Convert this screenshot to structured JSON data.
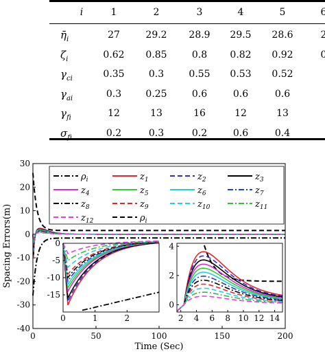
{
  "table": {
    "header": [
      "i",
      "1",
      "2",
      "3",
      "4",
      "5",
      "6"
    ],
    "rows": [
      {
        "symbol": "η̄",
        "sub": "i",
        "values": [
          "27",
          "29.2",
          "28.9",
          "29.5",
          "28.6",
          "2"
        ]
      },
      {
        "symbol": "ζ",
        "sub": "i",
        "values": [
          "0.62",
          "0.85",
          "0.8",
          "0.82",
          "0.92",
          "0"
        ]
      },
      {
        "symbol": "γ",
        "sub": "ci",
        "values": [
          "0.35",
          "0.3",
          "0.55",
          "0.53",
          "0.52",
          ""
        ]
      },
      {
        "symbol": "γ",
        "sub": "ai",
        "values": [
          "0.3",
          "0.25",
          "0.6",
          "0.6",
          "0.6",
          ""
        ]
      },
      {
        "symbol": "γ",
        "sub": "fi",
        "values": [
          "12",
          "13",
          "16",
          "12",
          "13",
          ""
        ]
      },
      {
        "symbol": "σ",
        "sub": "fi",
        "values": [
          "0.2",
          "0.3",
          "0.2",
          "0.6",
          "0.4",
          ""
        ]
      }
    ]
  },
  "chart_data": {
    "type": "line",
    "xlabel": "Time (Sec)",
    "ylabel": "Spacing Errors(m)",
    "xlim": [
      0,
      200
    ],
    "ylim": [
      -40,
      30
    ],
    "xticks": [
      "0",
      "50",
      "100",
      "150",
      "200"
    ],
    "yticks": [
      "-40",
      "-30",
      "-20",
      "-10",
      "0",
      "10",
      "20",
      "30"
    ],
    "grid": false,
    "legend_placement": "top",
    "legend": [
      {
        "label": "ρi",
        "main": "ρ",
        "sub": "i",
        "color": "#000000",
        "dash": "dashdot"
      },
      {
        "label": "z1",
        "main": "z",
        "sub": "1",
        "color": "#e8232a",
        "dash": "solid"
      },
      {
        "label": "z2",
        "main": "z",
        "sub": "2",
        "color": "#2b2bd9",
        "dash": "dashed"
      },
      {
        "label": "z3",
        "main": "z",
        "sub": "3",
        "color": "#000000",
        "dash": "solid"
      },
      {
        "label": "z4",
        "main": "z",
        "sub": "4",
        "color": "#d92bd9",
        "dash": "solid"
      },
      {
        "label": "z5",
        "main": "z",
        "sub": "5",
        "color": "#33cc33",
        "dash": "solid"
      },
      {
        "label": "z6",
        "main": "z",
        "sub": "6",
        "color": "#22d0d0",
        "dash": "solid"
      },
      {
        "label": "z7",
        "main": "z",
        "sub": "7",
        "color": "#1f3fc0",
        "dash": "dashdot"
      },
      {
        "label": "z8",
        "main": "z",
        "sub": "8",
        "color": "#000000",
        "dash": "dashdot"
      },
      {
        "label": "z9",
        "main": "z",
        "sub": "9",
        "color": "#e8232a",
        "dash": "dashed"
      },
      {
        "label": "z10",
        "main": "z",
        "sub": "10",
        "color": "#22ccee",
        "dash": "dashed"
      },
      {
        "label": "z11",
        "main": "z",
        "sub": "11",
        "color": "#33bb33",
        "dash": "dashdot"
      },
      {
        "label": "z12",
        "main": "z",
        "sub": "12",
        "color": "#e83ae8",
        "dash": "dashed"
      },
      {
        "label": "ρi",
        "main": "ρ",
        "sub": "i",
        "color": "#000000",
        "dash": "dashed"
      }
    ],
    "series_shapes": [
      {
        "name": "z1",
        "peak": -18,
        "final": 1.6
      },
      {
        "name": "z2",
        "peak": -17,
        "final": 1.4
      },
      {
        "name": "z3",
        "peak": -16,
        "final": 1.3
      },
      {
        "name": "z4",
        "peak": -14,
        "final": 1.1
      },
      {
        "name": "z5",
        "peak": -13,
        "final": 1.0
      },
      {
        "name": "z6",
        "peak": -12,
        "final": 0.9
      },
      {
        "name": "z7",
        "peak": -11,
        "final": 0.8
      },
      {
        "name": "z8",
        "peak": -10,
        "final": 0.7
      },
      {
        "name": "z9",
        "peak": -9,
        "final": 0.6
      },
      {
        "name": "z10",
        "peak": -7,
        "final": 0.5
      },
      {
        "name": "z11",
        "peak": -5,
        "final": 0.4
      },
      {
        "name": "z12",
        "peak": -3,
        "final": 0.3
      }
    ],
    "envelope": {
      "upper_start": 26,
      "upper_final": 1.6,
      "lower_start": -26,
      "lower_final": -1.6
    },
    "inset_left": {
      "xlim": [
        0,
        3
      ],
      "ylim": [
        -20,
        0
      ],
      "xticks": [
        "0",
        "1",
        "2"
      ],
      "yticks": [
        "-15",
        "-10",
        "-5",
        "0"
      ]
    },
    "inset_right": {
      "xlim": [
        1.5,
        15
      ],
      "ylim": [
        -0.5,
        4.2
      ],
      "xticks": [
        "2",
        "4",
        "6",
        "8",
        "10",
        "12",
        "14"
      ],
      "yticks": [
        "0",
        "2",
        "4"
      ]
    }
  }
}
